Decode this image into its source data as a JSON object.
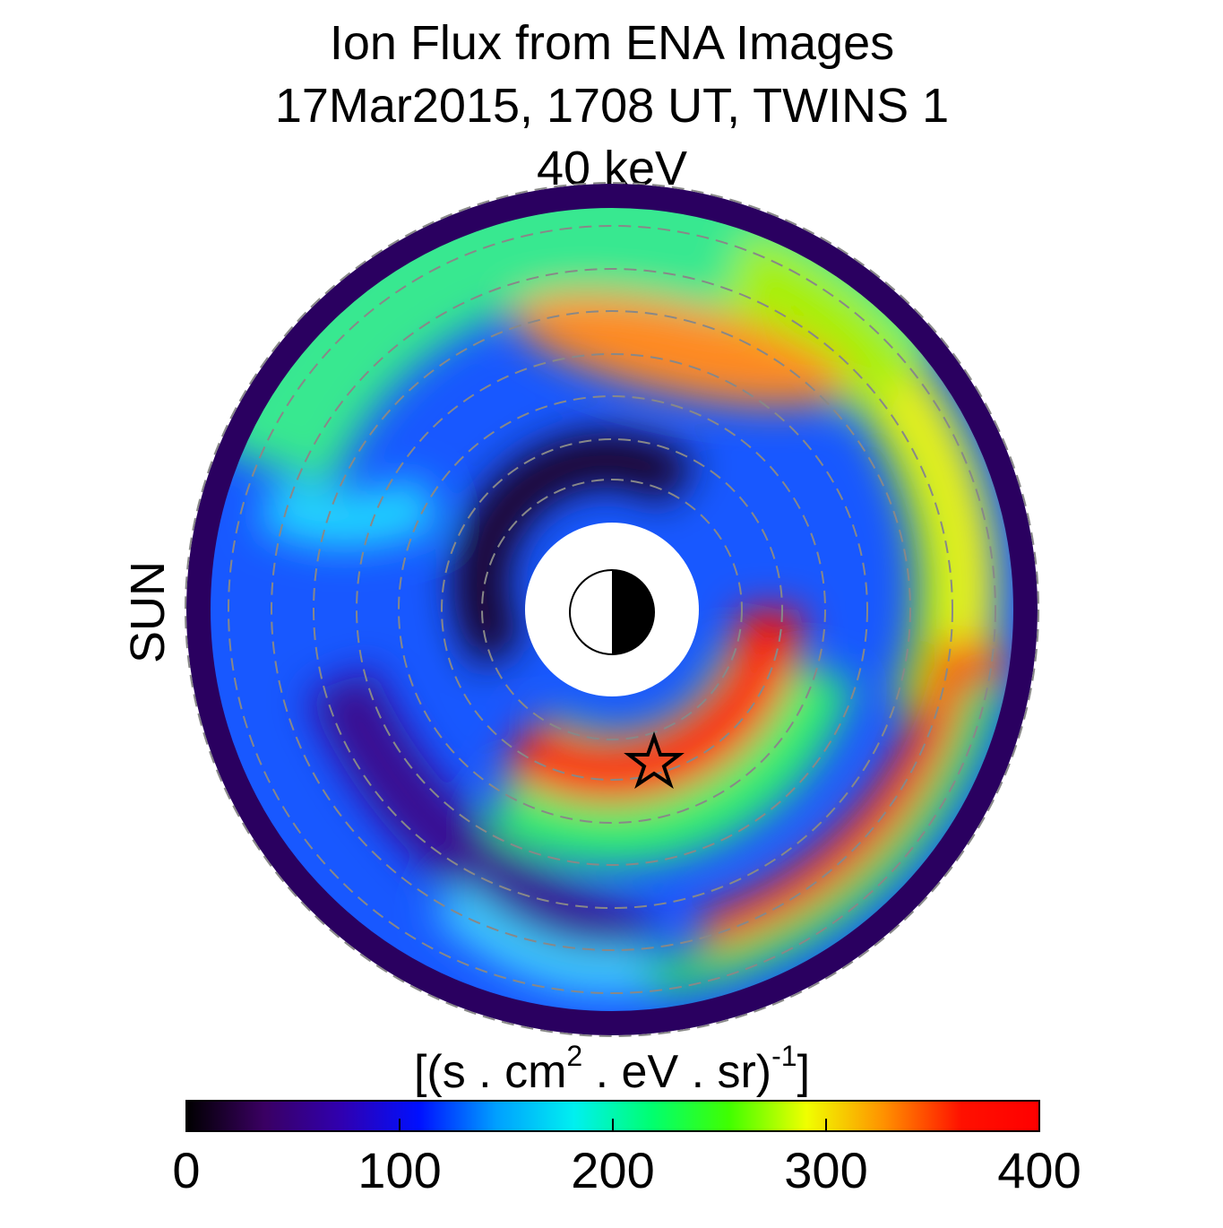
{
  "chart_data": {
    "type": "heatmap",
    "title": [
      "Ion Flux from  ENA Images",
      "17Mar2015, 1708 UT,  TWINS 1",
      "40 keV"
    ],
    "annotation": {
      "text": "SUN",
      "color": "#f59a10"
    },
    "colorbar": {
      "label": [
        "[(s . cm",
        "2",
        " . eV . sr)",
        "-1",
        "]"
      ],
      "lim": [
        0,
        400
      ],
      "ticks": [
        0,
        100,
        200,
        300,
        400
      ],
      "colors": [
        "#000000",
        "#3a0062",
        "#3000b0",
        "#0010ff",
        "#00a0ff",
        "#00f0f0",
        "#00ff70",
        "#40ff00",
        "#f0ff00",
        "#ff9000",
        "#ff1000",
        "#ff0000"
      ]
    }
  }
}
